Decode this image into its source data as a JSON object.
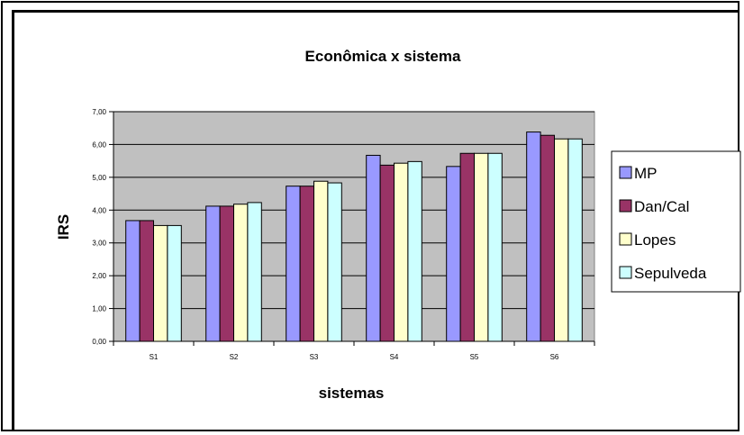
{
  "chart_data": {
    "type": "bar",
    "title": "Econômica x sistema",
    "xlabel": "sistemas",
    "ylabel": "IRS",
    "ylim": [
      0,
      7
    ],
    "ytick_labels": [
      "0,00",
      "1,00",
      "2,00",
      "3,00",
      "4,00",
      "5,00",
      "6,00",
      "7,00"
    ],
    "categories": [
      "S1",
      "S2",
      "S3",
      "S4",
      "S5",
      "S6"
    ],
    "series": [
      {
        "name": "MP",
        "color": "#9999ff",
        "values": [
          3.68,
          4.12,
          4.73,
          5.67,
          5.33,
          6.38
        ]
      },
      {
        "name": "Dan/Cal",
        "color": "#993366",
        "values": [
          3.68,
          4.12,
          4.73,
          5.37,
          5.73,
          6.28
        ]
      },
      {
        "name": "Lopes",
        "color": "#ffffcc",
        "values": [
          3.53,
          4.18,
          4.88,
          5.43,
          5.73,
          6.17
        ]
      },
      {
        "name": "Sepulveda",
        "color": "#ccffff",
        "values": [
          3.53,
          4.23,
          4.83,
          5.48,
          5.73,
          6.17
        ]
      }
    ],
    "plot_background": "#c0c0c0",
    "grid": true,
    "legend_position": "right"
  }
}
